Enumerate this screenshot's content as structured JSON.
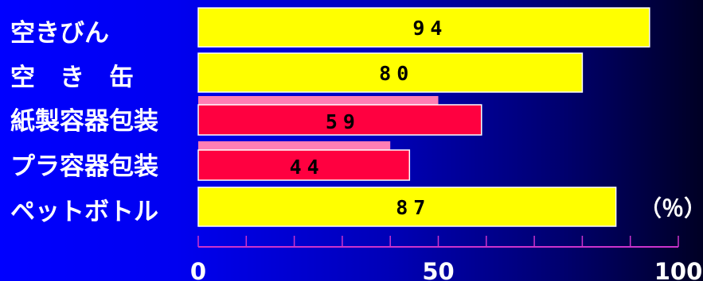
{
  "chart_data": {
    "type": "bar",
    "orientation": "horizontal",
    "categories": [
      "空きびん",
      "空　き　缶",
      "紙製容器包装",
      "プラ容器包装",
      "ペットボトル"
    ],
    "values": [
      94,
      80,
      59,
      44,
      87
    ],
    "secondary_values": [
      null,
      null,
      50,
      40,
      null
    ],
    "xlim": [
      0,
      100
    ],
    "xticks": [
      0,
      50,
      100
    ],
    "xtick_labels": [
      "0",
      "50",
      "100"
    ],
    "unit_label": "（％）",
    "grid": false,
    "colors": {
      "primary_bar": "#ffff00",
      "highlight_bar": "#ff0040",
      "secondary_bar": "#ff7eb4",
      "axis": "#cc33cc",
      "text": "#ffffff",
      "value_text": "#000000"
    }
  }
}
